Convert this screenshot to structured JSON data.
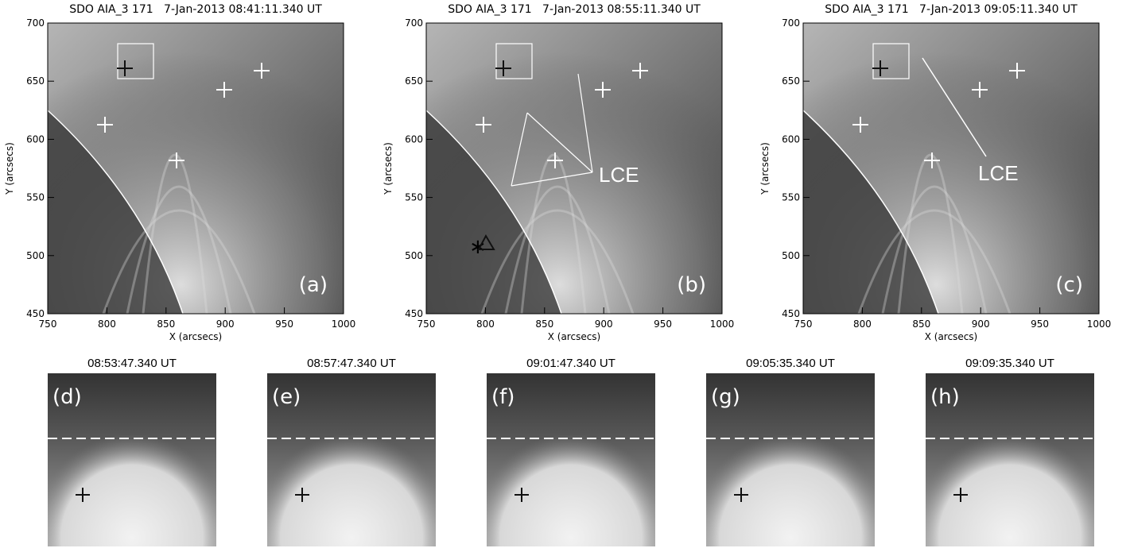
{
  "top_panels": [
    {
      "title": "SDO AIA_3 171   7-Jan-2013 08:41:11.340 UT",
      "xlabel": "X (arcsecs)",
      "ylabel": "Y (arcsecs)",
      "xlim": [
        750,
        1000
      ],
      "ylim": [
        450,
        700
      ],
      "xticks": [
        750,
        800,
        850,
        900,
        950,
        1000
      ],
      "yticks": [
        450,
        500,
        550,
        600,
        650,
        700
      ],
      "label": "(a)"
    },
    {
      "title": "SDO AIA_3 171   7-Jan-2013 08:55:11.340 UT",
      "xlabel": "X (arcsecs)",
      "ylabel": "Y (arcsecs)",
      "xlim": [
        750,
        1000
      ],
      "ylim": [
        450,
        700
      ],
      "xticks": [
        750,
        800,
        850,
        900,
        950,
        1000
      ],
      "yticks": [
        450,
        500,
        550,
        600,
        650,
        700
      ],
      "label": "(b)",
      "annotation": "LCE"
    },
    {
      "title": "SDO AIA_3 171   7-Jan-2013 09:05:11.340 UT",
      "xlabel": "X (arcsecs)",
      "ylabel": "Y (arcsecs)",
      "xlim": [
        750,
        1000
      ],
      "ylim": [
        450,
        700
      ],
      "xticks": [
        750,
        800,
        850,
        900,
        950,
        1000
      ],
      "yticks": [
        450,
        500,
        550,
        600,
        650,
        700
      ],
      "label": "(c)",
      "annotation": "LCE"
    }
  ],
  "bottom_panels": [
    {
      "title": "08:53:47.340 UT",
      "label": "(d)"
    },
    {
      "title": "08:57:47.340 UT",
      "label": "(e)"
    },
    {
      "title": "09:01:47.340 UT",
      "label": "(f)"
    },
    {
      "title": "09:05:35.340 UT",
      "label": "(g)"
    },
    {
      "title": "09:09:35.340 UT",
      "label": "(h)"
    }
  ]
}
